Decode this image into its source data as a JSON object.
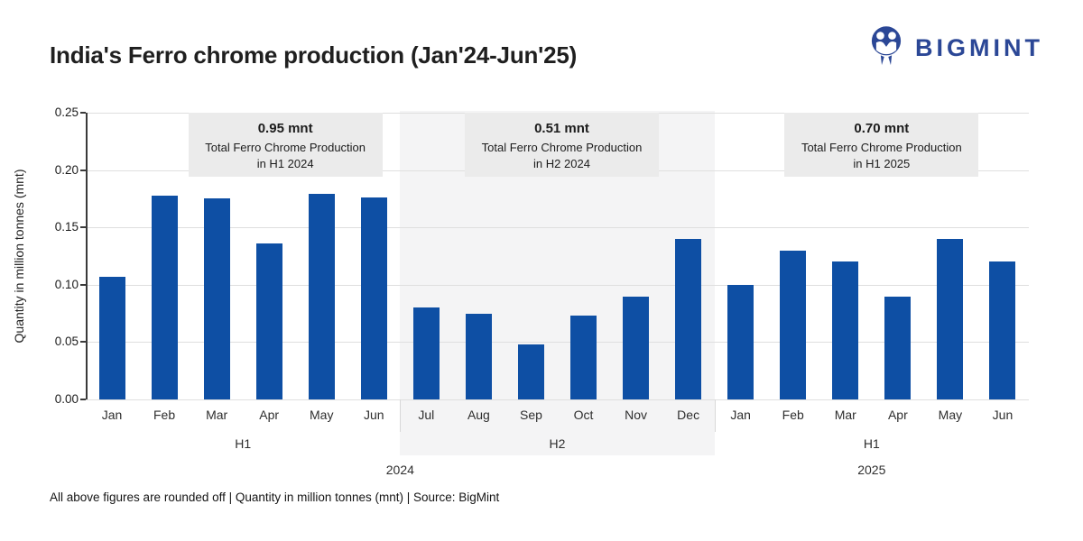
{
  "header": {
    "title": "India's Ferro chrome production (Jan'24-Jun'25)",
    "brand": "BIGMINT",
    "brand_color": "#2b4796"
  },
  "chart_data": {
    "type": "bar",
    "title": "India's Ferro chrome production (Jan'24-Jun'25)",
    "xlabel": "",
    "ylabel": "Quantity in million tonnes (mnt)",
    "ylim": [
      0,
      0.25
    ],
    "yticks": [
      0,
      0.05,
      0.1,
      0.15,
      0.2,
      0.25
    ],
    "grid": true,
    "legend": false,
    "bar_color": "#0e4fa4",
    "shaded_band_color": "#f4f4f5",
    "annotation_box_color": "#ebebeb",
    "categories": [
      "Jan",
      "Feb",
      "Mar",
      "Apr",
      "May",
      "Jun",
      "Jul",
      "Aug",
      "Sep",
      "Oct",
      "Nov",
      "Dec",
      "Jan",
      "Feb",
      "Mar",
      "Apr",
      "May",
      "Jun"
    ],
    "values": [
      0.107,
      0.178,
      0.175,
      0.136,
      0.179,
      0.176,
      0.08,
      0.075,
      0.048,
      0.073,
      0.09,
      0.14,
      0.1,
      0.13,
      0.12,
      0.09,
      0.14,
      0.12
    ],
    "half_groups": [
      {
        "label": "H1",
        "start": 0,
        "end": 5,
        "shaded": false
      },
      {
        "label": "H2",
        "start": 6,
        "end": 11,
        "shaded": true
      },
      {
        "label": "H1",
        "start": 12,
        "end": 17,
        "shaded": false
      }
    ],
    "year_groups": [
      {
        "label": "2024",
        "start": 0,
        "end": 11
      },
      {
        "label": "2025",
        "start": 12,
        "end": 17
      }
    ],
    "annotations": [
      {
        "headline": "0.95 mnt",
        "line1": "Total Ferro Chrome Production",
        "line2": "in H1 2024"
      },
      {
        "headline": "0.51 mnt",
        "line1": "Total Ferro Chrome Production",
        "line2": "in H2 2024"
      },
      {
        "headline": "0.70 mnt",
        "line1": "Total Ferro Chrome Production",
        "line2": "in H1 2025"
      }
    ]
  },
  "footer": {
    "note": "All above figures are rounded off | Quantity in million tonnes (mnt) | Source: BigMint"
  }
}
